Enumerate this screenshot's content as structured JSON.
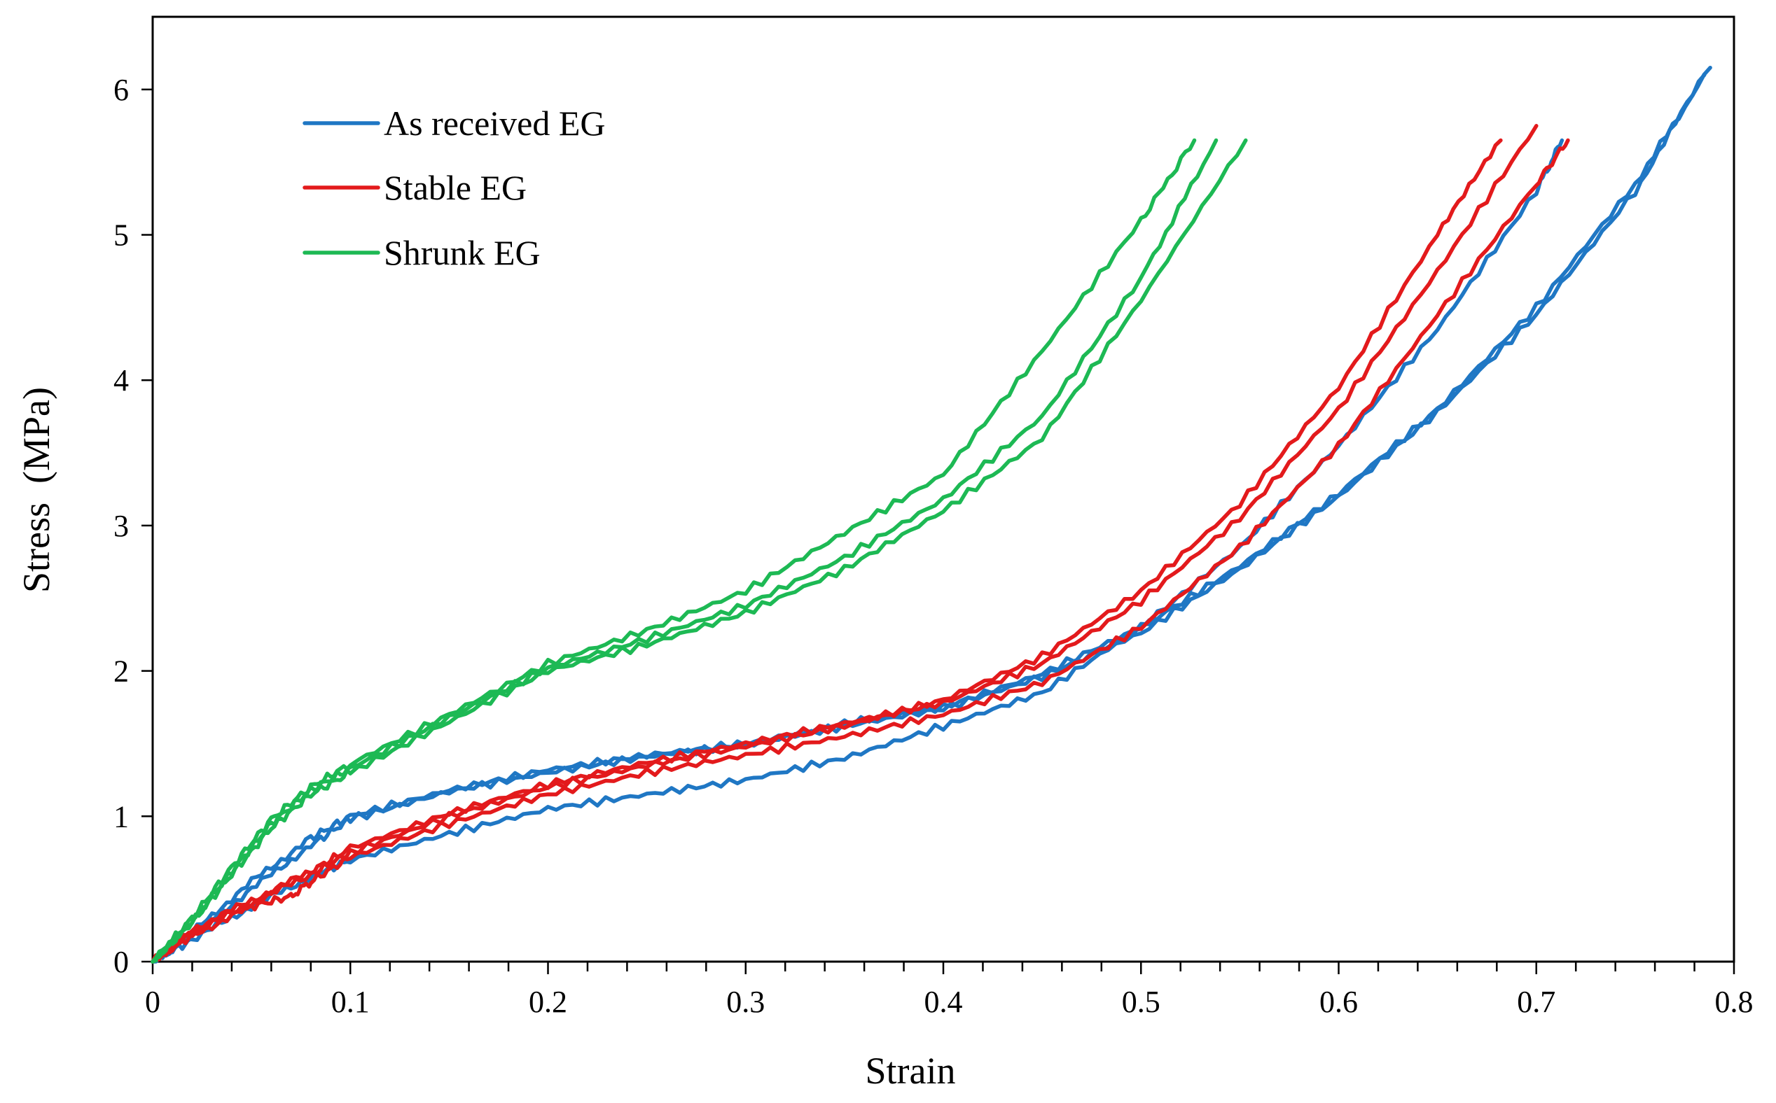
{
  "chart_data": {
    "type": "line",
    "title": "",
    "xlabel": "Strain",
    "ylabel": "Stress (MPa)",
    "xlim": [
      0,
      0.8
    ],
    "ylim": [
      0,
      6.5
    ],
    "x_ticks": [
      0,
      0.1,
      0.2,
      0.3,
      0.4,
      0.5,
      0.6,
      0.7,
      0.8
    ],
    "x_tick_labels": [
      "0",
      "0.1",
      "0.2",
      "0.3",
      "0.4",
      "0.5",
      "0.6",
      "0.7",
      "0.8"
    ],
    "x_minor_step": 0.02,
    "y_ticks": [
      0,
      1,
      2,
      3,
      4,
      5,
      6
    ],
    "y_tick_labels": [
      "0",
      "1",
      "2",
      "3",
      "4",
      "5",
      "6"
    ],
    "grid": false,
    "legend_position": "top-left",
    "legend": [
      {
        "label": "As received EG",
        "color": "#1f77c4"
      },
      {
        "label": "Stable EG",
        "color": "#e31a1c"
      },
      {
        "label": "Shrunk EG",
        "color": "#1db954"
      }
    ],
    "series": [
      {
        "name": "As received EG (1)",
        "group": "As received EG",
        "color": "#1f77c4",
        "x": [
          0,
          0.02,
          0.05,
          0.08,
          0.1,
          0.15,
          0.2,
          0.25,
          0.3,
          0.35,
          0.4,
          0.45,
          0.5,
          0.55,
          0.6,
          0.65,
          0.7,
          0.75,
          0.788
        ],
        "y": [
          0,
          0.2,
          0.55,
          0.85,
          1.0,
          1.18,
          1.32,
          1.42,
          1.5,
          1.64,
          1.75,
          1.98,
          2.3,
          2.72,
          3.22,
          3.8,
          4.5,
          5.35,
          6.15
        ]
      },
      {
        "name": "As received EG (2)",
        "group": "As received EG",
        "color": "#1f77c4",
        "x": [
          0,
          0.02,
          0.05,
          0.08,
          0.1,
          0.15,
          0.2,
          0.25,
          0.3,
          0.35,
          0.4,
          0.45,
          0.5,
          0.55,
          0.6,
          0.65,
          0.7,
          0.75,
          0.785
        ],
        "y": [
          0,
          0.18,
          0.5,
          0.8,
          0.98,
          1.17,
          1.3,
          1.41,
          1.49,
          1.62,
          1.74,
          1.96,
          2.26,
          2.7,
          3.2,
          3.78,
          4.45,
          5.3,
          6.1
        ]
      },
      {
        "name": "As received EG (3)",
        "group": "As received EG",
        "color": "#1f77c4",
        "x": [
          0,
          0.02,
          0.05,
          0.08,
          0.1,
          0.15,
          0.2,
          0.25,
          0.3,
          0.35,
          0.4,
          0.45,
          0.5,
          0.55,
          0.6,
          0.65,
          0.7,
          0.713
        ],
        "y": [
          0,
          0.15,
          0.38,
          0.58,
          0.7,
          0.88,
          1.05,
          1.15,
          1.25,
          1.4,
          1.62,
          1.85,
          2.3,
          2.85,
          3.55,
          4.35,
          5.3,
          5.65
        ]
      },
      {
        "name": "Stable EG (1)",
        "group": "Stable EG",
        "color": "#e31a1c",
        "x": [
          0,
          0.02,
          0.05,
          0.08,
          0.1,
          0.15,
          0.2,
          0.25,
          0.3,
          0.35,
          0.4,
          0.45,
          0.5,
          0.55,
          0.6,
          0.65,
          0.682
        ],
        "y": [
          0,
          0.2,
          0.4,
          0.6,
          0.75,
          1.0,
          1.2,
          1.35,
          1.48,
          1.62,
          1.8,
          2.1,
          2.55,
          3.15,
          3.95,
          5.0,
          5.65
        ]
      },
      {
        "name": "Stable EG (2)",
        "group": "Stable EG",
        "color": "#e31a1c",
        "x": [
          0,
          0.02,
          0.05,
          0.08,
          0.1,
          0.15,
          0.2,
          0.25,
          0.3,
          0.35,
          0.4,
          0.45,
          0.5,
          0.55,
          0.6,
          0.65,
          0.7
        ],
        "y": [
          0,
          0.22,
          0.42,
          0.62,
          0.78,
          1.02,
          1.22,
          1.37,
          1.5,
          1.64,
          1.78,
          2.05,
          2.48,
          3.05,
          3.8,
          4.75,
          5.75
        ]
      },
      {
        "name": "Stable EG (3)",
        "group": "Stable EG",
        "color": "#e31a1c",
        "x": [
          0,
          0.02,
          0.05,
          0.07,
          0.08,
          0.1,
          0.15,
          0.2,
          0.25,
          0.3,
          0.35,
          0.4,
          0.45,
          0.5,
          0.55,
          0.6,
          0.65,
          0.7,
          0.716
        ],
        "y": [
          0,
          0.18,
          0.38,
          0.45,
          0.55,
          0.72,
          0.95,
          1.15,
          1.3,
          1.42,
          1.55,
          1.7,
          1.92,
          2.3,
          2.85,
          3.55,
          4.45,
          5.35,
          5.65
        ]
      },
      {
        "name": "Shrunk EG (1)",
        "group": "Shrunk EG",
        "color": "#1db954",
        "x": [
          0,
          0.02,
          0.04,
          0.06,
          0.08,
          0.1,
          0.15,
          0.2,
          0.25,
          0.3,
          0.35,
          0.4,
          0.45,
          0.5,
          0.527
        ],
        "y": [
          0,
          0.3,
          0.65,
          0.98,
          1.2,
          1.36,
          1.7,
          2.05,
          2.28,
          2.55,
          2.95,
          3.35,
          4.2,
          5.1,
          5.65
        ]
      },
      {
        "name": "Shrunk EG (2)",
        "group": "Shrunk EG",
        "color": "#1db954",
        "x": [
          0,
          0.02,
          0.04,
          0.06,
          0.08,
          0.1,
          0.15,
          0.2,
          0.25,
          0.3,
          0.35,
          0.4,
          0.45,
          0.5,
          0.538
        ],
        "y": [
          0,
          0.28,
          0.62,
          0.95,
          1.18,
          1.33,
          1.68,
          2.02,
          2.22,
          2.45,
          2.78,
          3.18,
          3.75,
          4.7,
          5.65
        ]
      },
      {
        "name": "Shrunk EG (3)",
        "group": "Shrunk EG",
        "color": "#1db954",
        "x": [
          0,
          0.02,
          0.04,
          0.06,
          0.08,
          0.1,
          0.15,
          0.2,
          0.25,
          0.3,
          0.35,
          0.4,
          0.45,
          0.5,
          0.553
        ],
        "y": [
          0,
          0.27,
          0.6,
          0.92,
          1.15,
          1.3,
          1.65,
          2.0,
          2.18,
          2.4,
          2.7,
          3.1,
          3.6,
          4.55,
          5.65
        ]
      }
    ]
  }
}
